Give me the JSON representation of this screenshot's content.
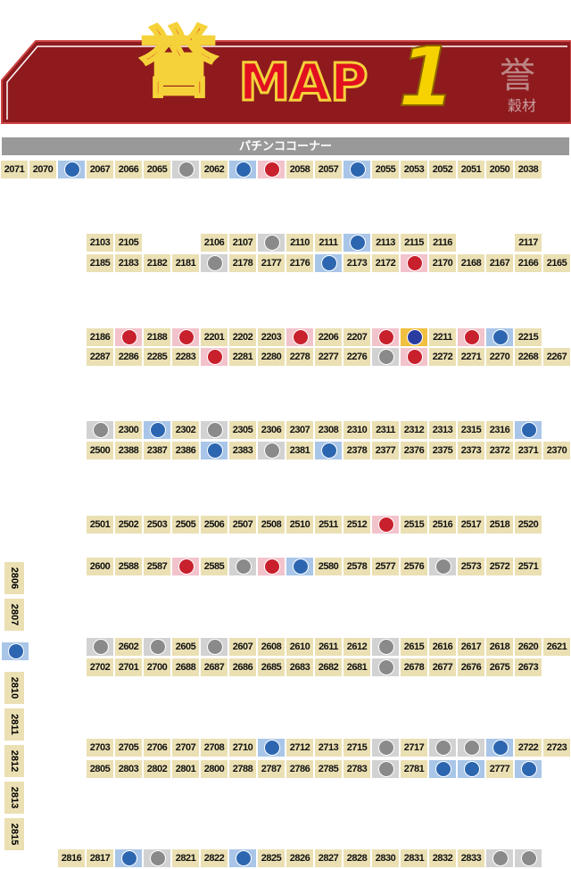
{
  "header": {
    "kanji": "誉",
    "title": "MAP",
    "number": "1",
    "logo_kanji": "誉",
    "logo_sub": "穀材"
  },
  "banner": "パチンココーナー",
  "rows": [
    [
      "2071",
      "2070",
      "2067",
      "2066",
      "2065",
      "2062",
      "2058",
      "2057",
      "2055",
      "2053",
      "2052",
      "2051",
      "2050",
      "2038"
    ],
    [
      "2103",
      "2105",
      "2106",
      "2107",
      "2110",
      "2111",
      "2113",
      "2115",
      "2116",
      "2117"
    ],
    [
      "2185",
      "2183",
      "2182",
      "2181",
      "2178",
      "2177",
      "2176",
      "2173",
      "2172",
      "2170",
      "2168",
      "2167",
      "2166",
      "2165"
    ],
    [
      "2186",
      "2188",
      "2201",
      "2202",
      "2203",
      "2206",
      "2207",
      "2211",
      "2215"
    ],
    [
      "2287",
      "2286",
      "2285",
      "2283",
      "2281",
      "2280",
      "2278",
      "2277",
      "2276",
      "2272",
      "2271",
      "2270",
      "2268",
      "2267"
    ],
    [
      "2300",
      "2302",
      "2305",
      "2306",
      "2307",
      "2308",
      "2310",
      "2311",
      "2312",
      "2313",
      "2315",
      "2316"
    ],
    [
      "2500",
      "2388",
      "2387",
      "2386",
      "2383",
      "2381",
      "2378",
      "2377",
      "2376",
      "2375",
      "2373",
      "2372",
      "2371",
      "2370"
    ],
    [
      "2501",
      "2502",
      "2503",
      "2505",
      "2506",
      "2507",
      "2508",
      "2510",
      "2511",
      "2512",
      "2515",
      "2516",
      "2517",
      "2518",
      "2520"
    ],
    [
      "2600",
      "2588",
      "2587",
      "2585",
      "2580",
      "2578",
      "2577",
      "2576",
      "2573",
      "2572",
      "2571"
    ],
    [
      "2602",
      "2605",
      "2607",
      "2608",
      "2610",
      "2611",
      "2612",
      "2615",
      "2616",
      "2617",
      "2618",
      "2620",
      "2621"
    ],
    [
      "2702",
      "2701",
      "2700",
      "2688",
      "2687",
      "2686",
      "2685",
      "2683",
      "2682",
      "2681",
      "2678",
      "2677",
      "2676",
      "2675",
      "2673"
    ],
    [
      "2703",
      "2705",
      "2706",
      "2707",
      "2708",
      "2710",
      "2712",
      "2713",
      "2715",
      "2717",
      "2722",
      "2723"
    ],
    [
      "2805",
      "2803",
      "2802",
      "2801",
      "2800",
      "2788",
      "2787",
      "2786",
      "2785",
      "2783",
      "2781",
      "2777"
    ],
    [
      "2816",
      "2817",
      "2821",
      "2822",
      "2825",
      "2826",
      "2827",
      "2828",
      "2830",
      "2831",
      "2832",
      "2833"
    ]
  ],
  "side": [
    "2806",
    "2807",
    "2810",
    "2811",
    "2812",
    "2813",
    "2815"
  ]
}
